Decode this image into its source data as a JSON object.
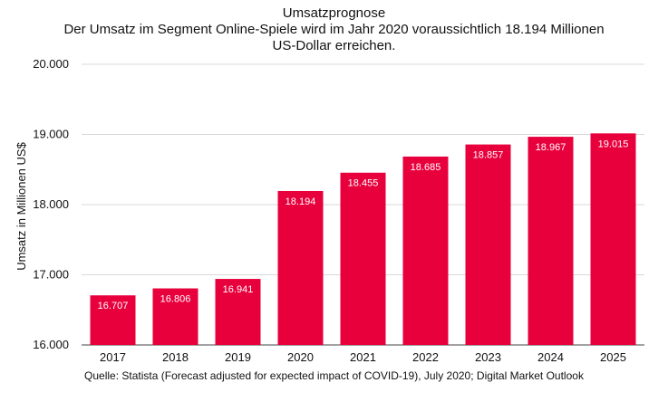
{
  "chart_data": {
    "type": "bar",
    "title": "Umsatzprognose",
    "subtitle": "Der Umsatz im Segment Online-Spiele wird im Jahr 2020 voraussichtlich 18.194 Millionen US-Dollar erreichen.",
    "xlabel": "",
    "ylabel": "Umsatz in Millionen US$",
    "categories": [
      "2017",
      "2018",
      "2019",
      "2020",
      "2021",
      "2022",
      "2023",
      "2024",
      "2025"
    ],
    "values": [
      16707,
      16806,
      16941,
      18194,
      18455,
      18685,
      18857,
      18967,
      19015
    ],
    "value_labels": [
      "16.707",
      "16.806",
      "16.941",
      "18.194",
      "18.455",
      "18.685",
      "18.857",
      "18.967",
      "19.015"
    ],
    "ylim": [
      16000,
      20000
    ],
    "yticks": [
      16000,
      17000,
      18000,
      19000,
      20000
    ],
    "ytick_labels": [
      "16.000",
      "17.000",
      "18.000",
      "19.000",
      "20.000"
    ],
    "grid": true,
    "bar_color": "#e8003d",
    "source": "Quelle: Statista (Forecast adjusted for expected impact of COVID-19), July 2020; Digital Market Outlook"
  }
}
